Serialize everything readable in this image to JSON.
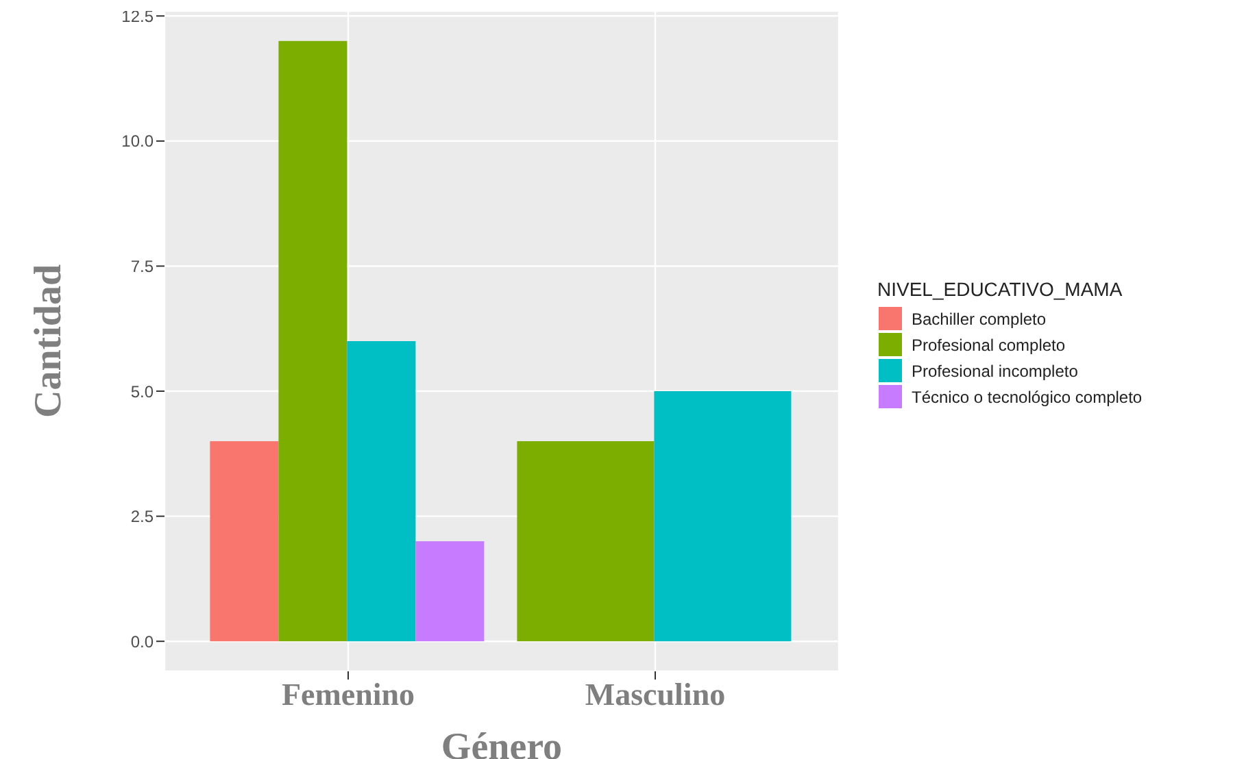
{
  "chart_data": {
    "type": "bar",
    "xlabel": "Género",
    "ylabel": "Cantidad",
    "legend_title": "NIVEL_EDUCATIVO_MAMA",
    "categories": [
      "Femenino",
      "Masculino"
    ],
    "series": [
      {
        "name": "Bachiller completo",
        "color": "#f8766d",
        "values": [
          4,
          null
        ]
      },
      {
        "name": "Profesional completo",
        "color": "#7cae00",
        "values": [
          12,
          4
        ]
      },
      {
        "name": "Profesional incompleto",
        "color": "#00bfc4",
        "values": [
          6,
          5
        ]
      },
      {
        "name": "Técnico o tecnológico completo",
        "color": "#c77cff",
        "values": [
          2,
          null
        ]
      }
    ],
    "ylim": [
      -0.6,
      12.6
    ],
    "yticks": [
      {
        "value": 0,
        "label": "0.0"
      },
      {
        "value": 2.5,
        "label": "2.5"
      },
      {
        "value": 5,
        "label": "5.0"
      },
      {
        "value": 7.5,
        "label": "7.5"
      },
      {
        "value": 10,
        "label": "10.0"
      },
      {
        "value": 12.5,
        "label": "12.5"
      }
    ],
    "grid": true,
    "legend": "right"
  }
}
